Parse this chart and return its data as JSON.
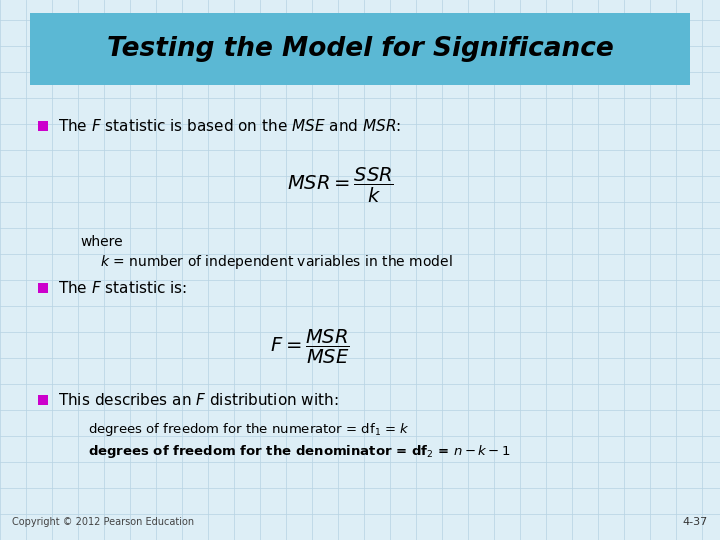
{
  "title": "Testing the Model for Significance",
  "title_bg_color": "#5bb8d4",
  "title_text_color": "#000000",
  "bg_color": "#ddeef6",
  "grid_color": "#b8d4e4",
  "bullet_color": "#cc00cc",
  "body_text_color": "#000000",
  "footer_left": "Copyright © 2012 Pearson Education",
  "footer_right": "4-37"
}
